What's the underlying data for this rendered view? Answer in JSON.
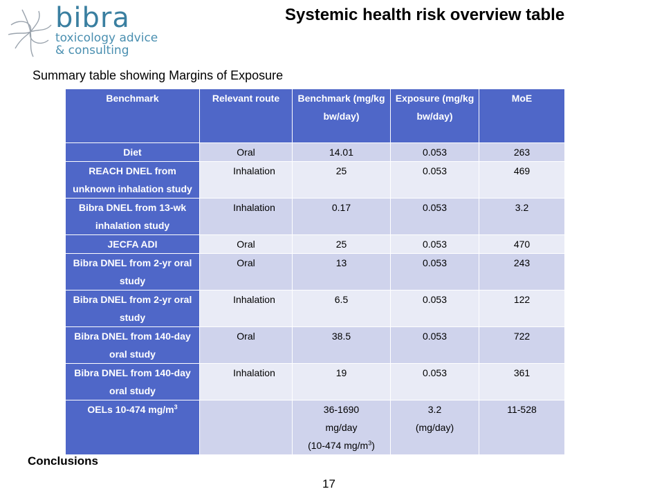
{
  "logo": {
    "brand": "bibra",
    "line1": "toxicology advice",
    "line2": "& consulting"
  },
  "title": "Systemic health risk overview table",
  "summary_text": "Summary table showing Margins of Exposure",
  "conclusion_label": "Conclusions",
  "page_number": "17",
  "colors": {
    "header_bg": "#4f67c8",
    "row_odd": "#cfd3ec",
    "row_even": "#e9ebf6",
    "logo": "#3a7fa0"
  },
  "table": {
    "headers": [
      "Benchmark",
      "Relevant route",
      "Benchmark (mg/kg bw/day)",
      "Exposure (mg/kg bw/day)",
      "MoE"
    ],
    "rows": [
      {
        "benchmark": "Diet",
        "route": "Oral",
        "value": "14.01",
        "exposure": "0.053",
        "moe": "263"
      },
      {
        "benchmark": "REACH DNEL from unknown inhalation study",
        "route": "Inhalation",
        "value": "25",
        "exposure": "0.053",
        "moe": "469"
      },
      {
        "benchmark": "Bibra DNEL from 13-wk inhalation study",
        "route": "Inhalation",
        "value": "0.17",
        "exposure": "0.053",
        "moe": "3.2"
      },
      {
        "benchmark": "JECFA ADI",
        "route": "Oral",
        "value": "25",
        "exposure": "0.053",
        "moe": "470"
      },
      {
        "benchmark": "Bibra DNEL from 2-yr oral study",
        "route": "Oral",
        "value": "13",
        "exposure": "0.053",
        "moe": "243"
      },
      {
        "benchmark": "Bibra DNEL from 2-yr oral study",
        "route": "Inhalation",
        "value": "6.5",
        "exposure": "0.053",
        "moe": "122"
      },
      {
        "benchmark": "Bibra DNEL from 140-day oral study",
        "route": "Oral",
        "value": "38.5",
        "exposure": "0.053",
        "moe": "722"
      },
      {
        "benchmark": "Bibra DNEL from 140-day oral study",
        "route": "Inhalation",
        "value": "19",
        "exposure": "0.053",
        "moe": "361"
      }
    ],
    "oel_row": {
      "label": "OELs 10-474 mg/m",
      "label_sup": "3",
      "value_line1": "36-1690",
      "value_line2": "mg/day",
      "value_line3": "(10-474 mg/m",
      "value_line3_sup": "3",
      "value_line3_end": ")",
      "exposure_line1": "3.2",
      "exposure_line2": "(mg/day)",
      "moe": "11-528"
    }
  }
}
